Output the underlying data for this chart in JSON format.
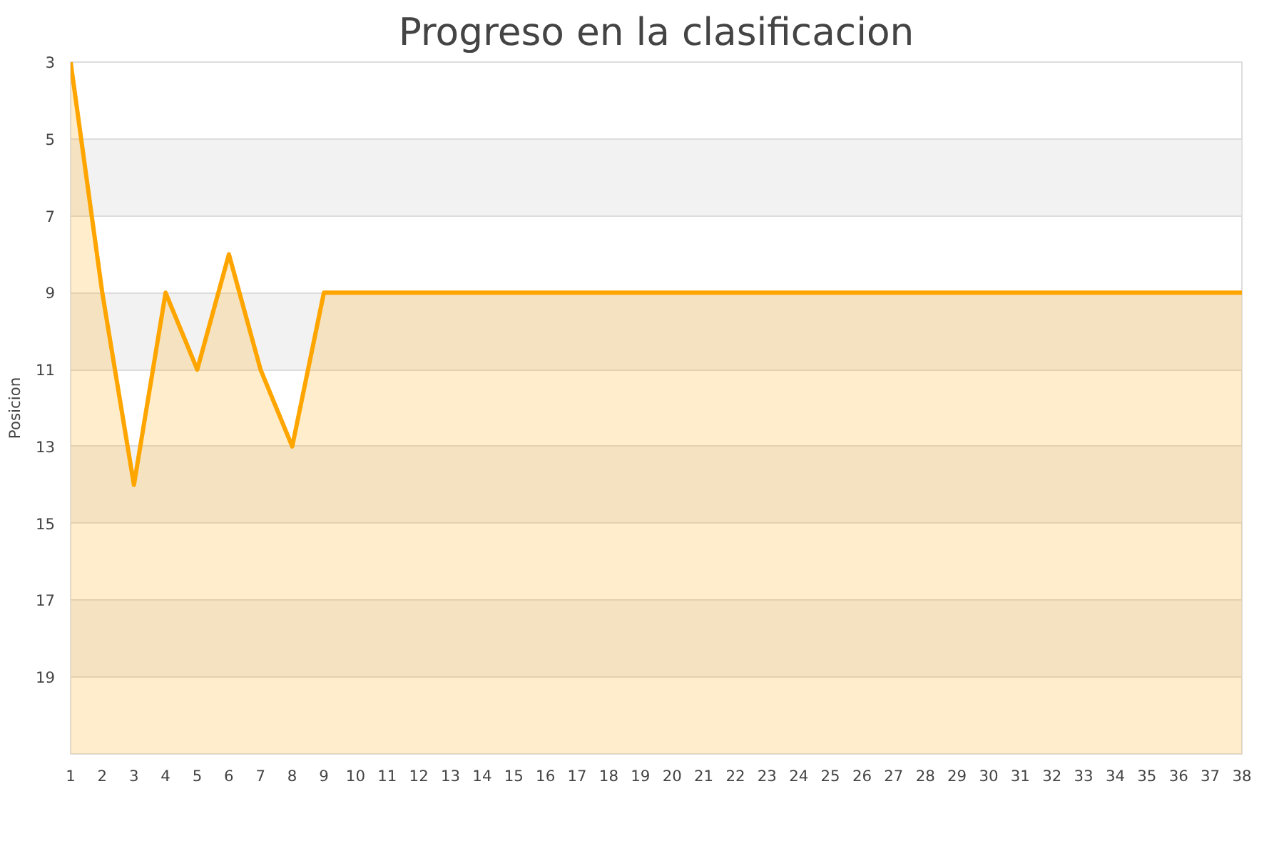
{
  "chart_data": {
    "type": "area",
    "title": "Progreso en la clasificacion",
    "ylabel": "Posicion",
    "x": [
      1,
      2,
      3,
      4,
      5,
      6,
      7,
      8,
      9,
      10,
      11,
      12,
      13,
      14,
      15,
      16,
      17,
      18,
      19,
      20,
      21,
      22,
      23,
      24,
      25,
      26,
      27,
      28,
      29,
      30,
      31,
      32,
      33,
      34,
      35,
      36,
      37,
      38
    ],
    "series": [
      {
        "color": "#ffa500",
        "values": [
          3,
          9,
          14,
          9,
          11,
          8,
          11,
          13,
          9,
          9,
          9,
          9,
          9,
          9,
          9,
          9,
          9,
          9,
          9,
          9,
          9,
          9,
          9,
          9,
          9,
          9,
          9,
          9,
          9,
          9,
          9,
          9,
          9,
          9,
          9,
          9,
          9,
          9
        ]
      }
    ],
    "xlim": [
      1,
      38
    ],
    "xticks": [
      1,
      2,
      3,
      4,
      5,
      6,
      7,
      8,
      9,
      10,
      11,
      12,
      13,
      14,
      15,
      16,
      17,
      18,
      19,
      20,
      21,
      22,
      23,
      24,
      25,
      26,
      27,
      28,
      29,
      30,
      31,
      32,
      33,
      34,
      35,
      36,
      37,
      38
    ],
    "ylim": [
      21,
      3
    ],
    "yticks": [
      3,
      5,
      7,
      9,
      11,
      13,
      15,
      17,
      19
    ],
    "grid": "y"
  }
}
